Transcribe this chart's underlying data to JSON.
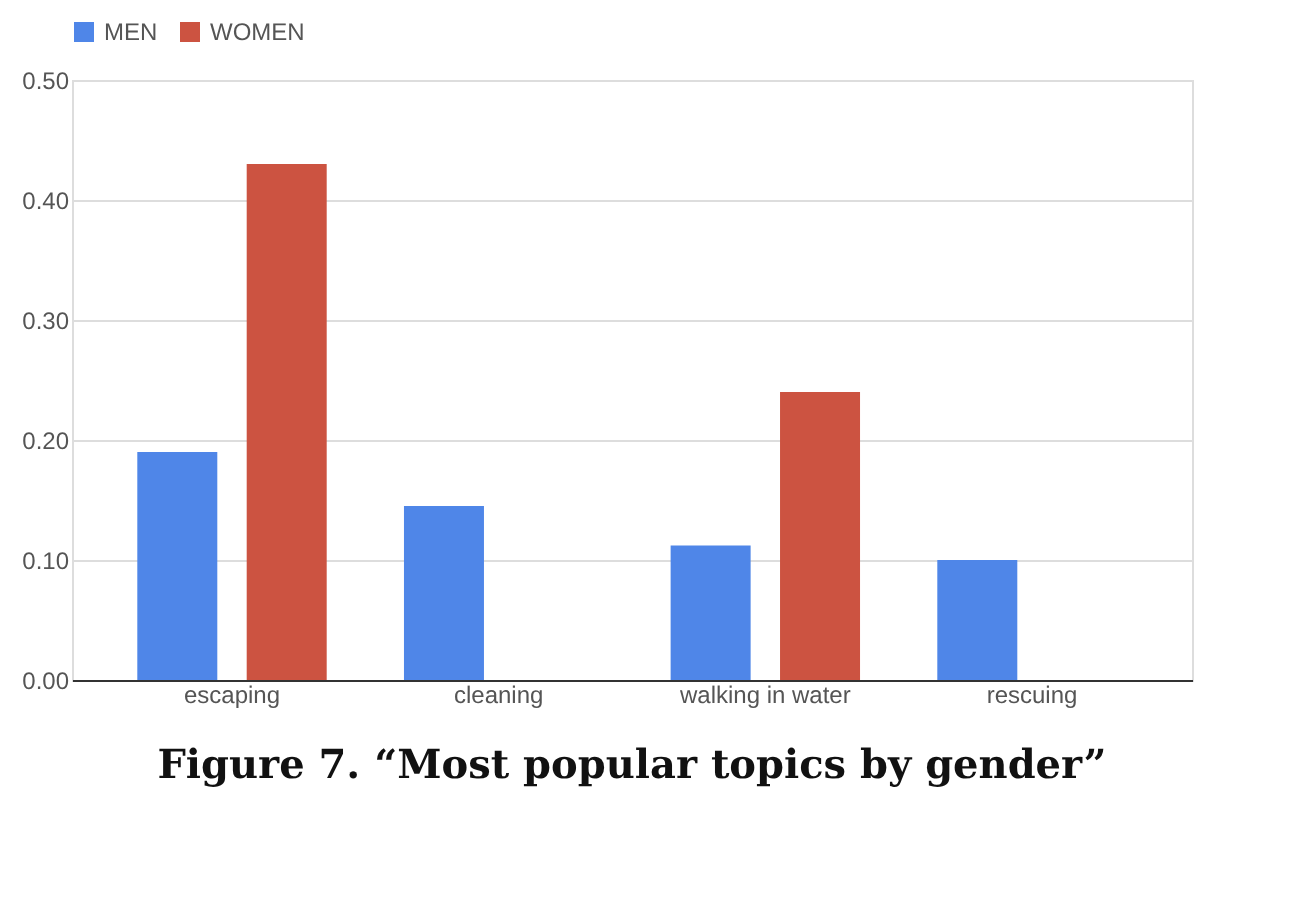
{
  "chart_data": {
    "type": "bar",
    "title": "Figure 7. “Most popular topics by gender”",
    "categories": [
      "escaping",
      "cleaning",
      "walking in water",
      "rescuing"
    ],
    "series": [
      {
        "name": "MEN",
        "color": "#4f86e8",
        "values": [
          0.19,
          0.145,
          0.112,
          0.1
        ]
      },
      {
        "name": "WOMEN",
        "color": "#cc5341",
        "values": [
          0.43,
          null,
          0.24,
          null
        ]
      }
    ],
    "ylim": [
      0,
      0.5
    ],
    "yticks": [
      {
        "value": 0,
        "label": "0.00"
      },
      {
        "value": 0.1,
        "label": "0.10"
      },
      {
        "value": 0.2,
        "label": "0.20"
      },
      {
        "value": 0.3,
        "label": "0.30"
      },
      {
        "value": 0.4,
        "label": "0.40"
      },
      {
        "value": 0.5,
        "label": "0.50"
      }
    ],
    "grid": "y",
    "legend": "top"
  }
}
